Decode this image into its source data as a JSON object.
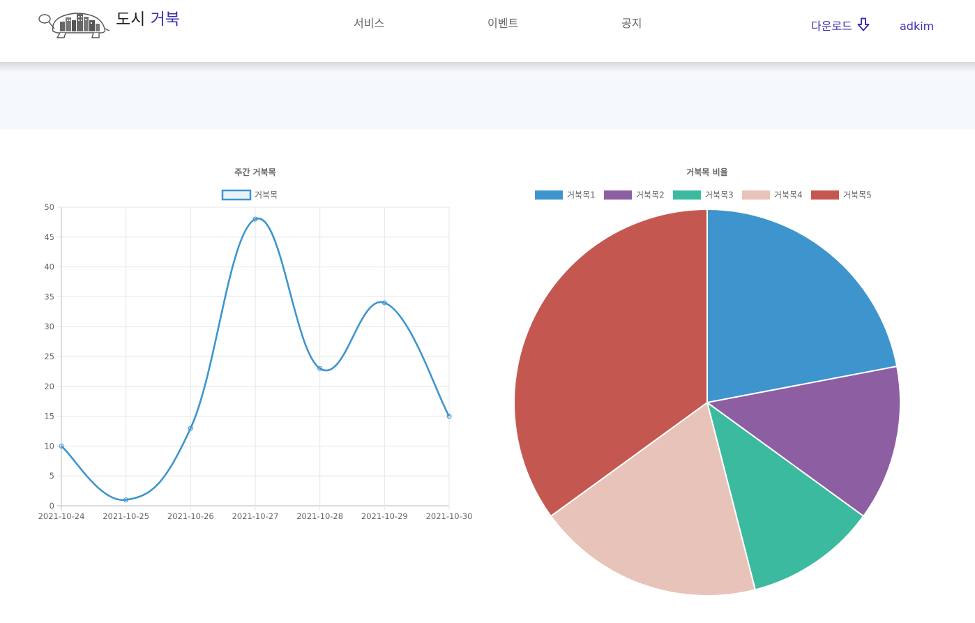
{
  "brand": {
    "title_plain": "도시",
    "title_accent": "거북",
    "accent_color": "#3a2fb0"
  },
  "nav": {
    "services": "서비스",
    "events": "이벤트",
    "notice": "공지",
    "download": "다운로드",
    "user": "adkim"
  },
  "icons": {
    "download": "arrow-down-icon",
    "logo": "turtle-city-logo-icon"
  },
  "chart_data": [
    {
      "type": "line",
      "title": "주간 거북목",
      "x": [
        "2021-10-24",
        "2021-10-25",
        "2021-10-26",
        "2021-10-27",
        "2021-10-28",
        "2021-10-29",
        "2021-10-30"
      ],
      "series": [
        {
          "name": "거북목",
          "values": [
            10,
            1,
            13,
            48,
            23,
            34,
            15
          ],
          "color": "#3e95cd"
        }
      ],
      "ylim": [
        0,
        50
      ],
      "yticks": [
        0,
        5,
        10,
        15,
        20,
        25,
        30,
        35,
        40,
        45,
        50
      ],
      "grid": true,
      "legend": "top"
    },
    {
      "type": "pie",
      "title": "거북목 비율",
      "categories": [
        "거북목1",
        "거북목2",
        "거북목3",
        "거북목4",
        "거북목5"
      ],
      "values": [
        22,
        13,
        11,
        19,
        35
      ],
      "colors": [
        "#3e95cd",
        "#8e5ea2",
        "#3cba9f",
        "#e8c3b9",
        "#c45850"
      ],
      "legend": "top"
    }
  ]
}
